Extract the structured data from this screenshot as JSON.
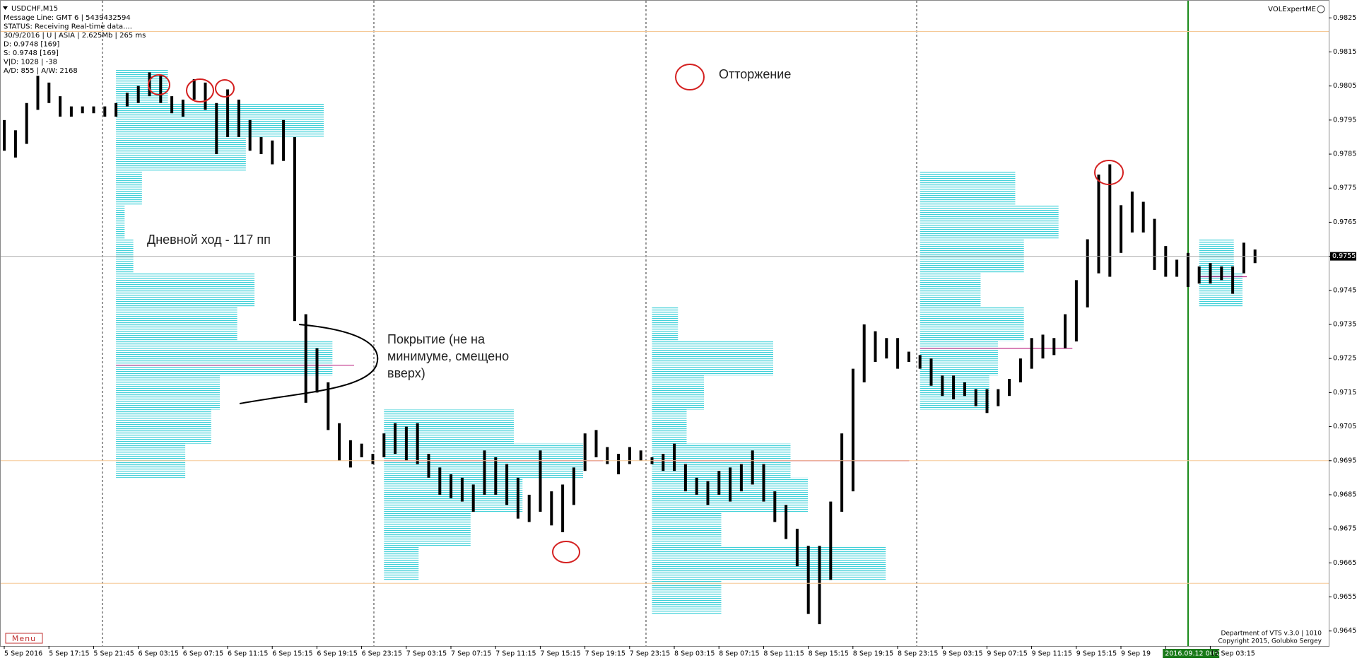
{
  "chart_data": {
    "type": "hilo",
    "title": "USDCHF,M15",
    "info_lines": [
      "Message Line: GMT 6 | 5439432594",
      "STATUS:  Receiving Real-time data....",
      "30/9/2016 | U | ASIA | 2.625Mb | 265 ms",
      "D: 0.9748  [169]",
      "S: 0.9748  [169]",
      "V|D: 1028 | -38",
      "A/D: 855 | A/W: 2168"
    ],
    "corner_label": "VOLExpertME",
    "footer_lines": [
      "Department of VTS  v.3.0 | 1010",
      "Copyright 2015, Golubko Sergey"
    ],
    "menu": "Menu",
    "annotations": {
      "legend": "Отторжение",
      "range": "Дневной ход - 117 пп",
      "coverage": [
        "Покрытие (не на",
        "минимуме, смещено",
        "вверх)"
      ]
    },
    "categories": [
      "5 Sep 2016",
      "5 Sep 17:15",
      "5 Sep 21:45",
      "6 Sep 03:15",
      "6 Sep 07:15",
      "6 Sep 11:15",
      "6 Sep 15:15",
      "6 Sep 19:15",
      "6 Sep 23:15",
      "7 Sep 03:15",
      "7 Sep 07:15",
      "7 Sep 11:15",
      "7 Sep 15:15",
      "7 Sep 19:15",
      "7 Sep 23:15",
      "8 Sep 03:15",
      "8 Sep 07:15",
      "8 Sep 11:15",
      "8 Sep 15:15",
      "8 Sep 19:15",
      "8 Sep 23:15",
      "9 Sep 03:15",
      "9 Sep 07:15",
      "9 Sep 11:15",
      "9 Sep 15:15",
      "9 Sep 19",
      "2016.09.12 00:00",
      "12 Sep 03:15"
    ],
    "color": "#000000",
    "high": [
      0.9795,
      0.9792,
      0.98,
      0.9808,
      0.9806,
      0.9802,
      0.9799,
      0.9799,
      0.9799,
      0.9799,
      0.98,
      0.9803,
      0.9805,
      0.9809,
      0.9808,
      0.9802,
      0.9801,
      0.9807,
      0.9806,
      0.98,
      0.9804,
      0.9801,
      0.9795,
      0.979,
      0.9789,
      0.9795,
      0.979,
      0.9738,
      0.9728,
      0.9718,
      0.9706,
      0.9701,
      0.97,
      0.9697,
      0.9703,
      0.9706,
      0.9705,
      0.9706,
      0.9697,
      0.9693,
      0.9691,
      0.969,
      0.9688,
      0.9698,
      0.9696,
      0.9694,
      0.969,
      0.9685,
      0.9698,
      0.9686,
      0.9688,
      0.9693,
      0.9703,
      0.9704,
      0.9699,
      0.9697,
      0.9699,
      0.9698,
      0.9696,
      0.9697,
      0.97,
      0.9694,
      0.969,
      0.9689,
      0.9692,
      0.9693,
      0.9694,
      0.9698,
      0.9694,
      0.9686,
      0.9682,
      0.9675,
      0.967,
      0.967,
      0.9683,
      0.9703,
      0.9722,
      0.9735,
      0.9733,
      0.9731,
      0.9731,
      0.9727,
      0.9726,
      0.9725,
      0.972,
      0.972,
      0.9718,
      0.9716,
      0.9716,
      0.9716,
      0.9719,
      0.9725,
      0.9731,
      0.9732,
      0.9731,
      0.9738,
      0.9748,
      0.976,
      0.9779,
      0.9782,
      0.977,
      0.9774,
      0.9771,
      0.9766,
      0.9758,
      0.9754,
      0.9756,
      0.9752,
      0.9753,
      0.9752,
      0.9752,
      0.9759,
      0.9757
    ],
    "low": [
      0.9786,
      0.9784,
      0.9788,
      0.9798,
      0.98,
      0.9796,
      0.9796,
      0.9797,
      0.9797,
      0.9796,
      0.9796,
      0.9799,
      0.98,
      0.9802,
      0.98,
      0.9797,
      0.9796,
      0.9801,
      0.9798,
      0.9785,
      0.979,
      0.979,
      0.9786,
      0.9785,
      0.9782,
      0.9783,
      0.9736,
      0.9712,
      0.9715,
      0.9704,
      0.9695,
      0.9693,
      0.9696,
      0.9694,
      0.9696,
      0.9697,
      0.9695,
      0.9694,
      0.969,
      0.9685,
      0.9684,
      0.9683,
      0.968,
      0.9685,
      0.9685,
      0.9682,
      0.9678,
      0.9677,
      0.968,
      0.9676,
      0.9674,
      0.9682,
      0.9692,
      0.9696,
      0.9694,
      0.9691,
      0.9694,
      0.9695,
      0.9694,
      0.9692,
      0.9692,
      0.9686,
      0.9685,
      0.9682,
      0.9685,
      0.9683,
      0.9686,
      0.9688,
      0.9683,
      0.9677,
      0.9672,
      0.9664,
      0.965,
      0.9647,
      0.966,
      0.968,
      0.9686,
      0.9718,
      0.9724,
      0.9725,
      0.9722,
      0.9724,
      0.9722,
      0.9717,
      0.9714,
      0.9713,
      0.9714,
      0.9711,
      0.9709,
      0.9711,
      0.9714,
      0.9718,
      0.9722,
      0.9725,
      0.9726,
      0.9728,
      0.973,
      0.974,
      0.975,
      0.9749,
      0.9756,
      0.9762,
      0.9762,
      0.9751,
      0.9749,
      0.9749,
      0.9746,
      0.9747,
      0.9747,
      0.9748,
      0.9744,
      0.975,
      0.9753
    ],
    "profiles": [
      {
        "start": 10,
        "levels": [
          0.9805,
          0.9795,
          0.9785,
          0.9775,
          0.9765,
          0.9755,
          0.9745,
          0.9735,
          0.9725,
          0.9715,
          0.9705,
          0.9695
        ],
        "volumes": [
          60,
          240,
          150,
          30,
          10,
          20,
          160,
          140,
          250,
          120,
          110,
          80
        ],
        "poc": 0.9723
      },
      {
        "start": 34,
        "levels": [
          0.9705,
          0.9695,
          0.9685,
          0.9675,
          0.9665
        ],
        "volumes": [
          150,
          230,
          160,
          100,
          40
        ],
        "poc": 0.9695
      },
      {
        "start": 58,
        "levels": [
          0.9735,
          0.9725,
          0.9715,
          0.9705,
          0.9695,
          0.9685,
          0.9675,
          0.9665,
          0.9655
        ],
        "volumes": [
          30,
          140,
          60,
          40,
          160,
          180,
          80,
          270,
          80
        ],
        "poc": 0.9695
      },
      {
        "start": 82,
        "levels": [
          0.9775,
          0.9765,
          0.9755,
          0.9745,
          0.9735,
          0.9725,
          0.9715
        ],
        "volumes": [
          110,
          160,
          120,
          70,
          120,
          90,
          80
        ],
        "poc": 0.9728
      },
      {
        "start": 107,
        "levels": [
          0.9755,
          0.9745
        ],
        "volumes": [
          40,
          50
        ],
        "poc": 0.9749
      }
    ],
    "profile_color": "#3fd0d8",
    "poc_color": "#c0308a",
    "levels": [
      0.9821,
      0.9695,
      0.9659
    ],
    "level_color": "#f5c896",
    "current_price": 0.9755,
    "ylim": [
      0.9641,
      0.9829
    ],
    "yticks": [
      0.9825,
      0.9815,
      0.9805,
      0.9795,
      0.9785,
      0.9775,
      0.9765,
      0.9755,
      0.9745,
      0.9735,
      0.9725,
      0.9715,
      0.9705,
      0.9695,
      0.9685,
      0.9675,
      0.9665,
      0.9655,
      0.9645
    ]
  }
}
